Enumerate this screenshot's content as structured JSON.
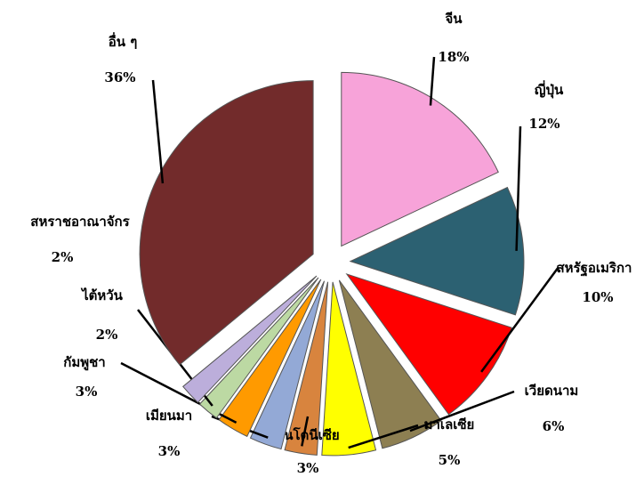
{
  "chart_data": {
    "type": "pie",
    "categories": [
      "จีน",
      "ญี่ปุ่น",
      "สหรัฐอเมริกา",
      "เวียดนาม",
      "มาเลเซีย",
      "อินโดนีเซีย",
      "เมียนมา",
      "กัมพูชา",
      "ไต้หวัน",
      "สหราชอาณาจักร",
      "อื่น ๆ"
    ],
    "values": [
      18,
      12,
      10,
      6,
      5,
      3,
      3,
      3,
      2,
      2,
      36
    ],
    "value_labels": [
      "18%",
      "12%",
      "10%",
      "6%",
      "5%",
      "3%",
      "3%",
      "3%",
      "2%",
      "2%",
      "36%"
    ],
    "colors": [
      "#f7a3d9",
      "#2c6172",
      "#ff0000",
      "#8d7f52",
      "#ffff00",
      "#d8843e",
      "#93a9d6",
      "#ff9a00",
      "#bcd9a3",
      "#bcaedb",
      "#722b2b"
    ]
  }
}
